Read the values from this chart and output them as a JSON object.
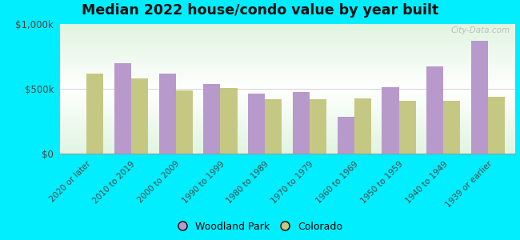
{
  "title": "Median 2022 house/condo value by year built",
  "categories": [
    "2020 or later",
    "2010 to 2019",
    "2000 to 2009",
    "1990 to 1999",
    "1980 to 1989",
    "1970 to 1979",
    "1960 to 1969",
    "1950 to 1959",
    "1940 to 1949",
    "1939 or earlier"
  ],
  "woodland_park": [
    0,
    700000,
    620000,
    535000,
    460000,
    475000,
    285000,
    510000,
    670000,
    870000
  ],
  "colorado": [
    620000,
    580000,
    490000,
    505000,
    420000,
    420000,
    425000,
    405000,
    405000,
    440000
  ],
  "woodland_color": "#b899cc",
  "colorado_color": "#c5c882",
  "background_outer": "#00eeff",
  "ylim": [
    0,
    1000000
  ],
  "ytick_labels": [
    "$0",
    "$500k",
    "$1,000k"
  ],
  "bar_width": 0.38,
  "legend_labels": [
    "Woodland Park",
    "Colorado"
  ],
  "watermark": "City-Data.com"
}
